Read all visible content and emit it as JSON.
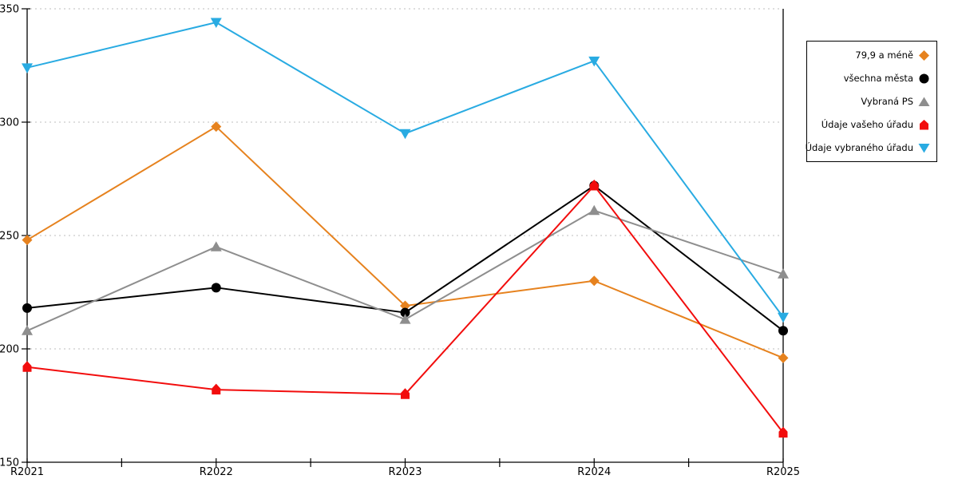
{
  "chart_data": {
    "type": "line",
    "title": "",
    "xlabel": "",
    "ylabel": "",
    "categories": [
      "R2021",
      "R2022",
      "R2023",
      "R2024",
      "R2025"
    ],
    "y_axis": {
      "min": 150,
      "max": 350,
      "ticks": [
        150,
        200,
        250,
        300,
        350
      ]
    },
    "grid": "horizontal dotted gridlines at 200/250/300/350",
    "legend_position": "top-right boxed, markers right of labels",
    "series": [
      {
        "name": "79,9 a méně",
        "color": "#E6821E",
        "marker": "diamond",
        "values": [
          248,
          298,
          219,
          230,
          196
        ]
      },
      {
        "name": "všechna města",
        "color": "#000000",
        "marker": "circle",
        "values": [
          218,
          227,
          216,
          272,
          208
        ]
      },
      {
        "name": "Vybraná PS",
        "color": "#8E8E8E",
        "marker": "triangle-up",
        "values": [
          208,
          245,
          213,
          261,
          233
        ]
      },
      {
        "name": "Údaje vašeho úřadu",
        "color": "#F20D0D",
        "marker": "house",
        "values": [
          192,
          182,
          180,
          272,
          163
        ]
      },
      {
        "name": "Údaje vybraného úřadu",
        "color": "#29ABE2",
        "marker": "triangle-down",
        "values": [
          324,
          344,
          295,
          327,
          214
        ]
      }
    ],
    "colors": {
      "axis": "#000000",
      "gridline": "#BEBEBE",
      "background": "#FFFFFF",
      "text": "#000000"
    }
  }
}
